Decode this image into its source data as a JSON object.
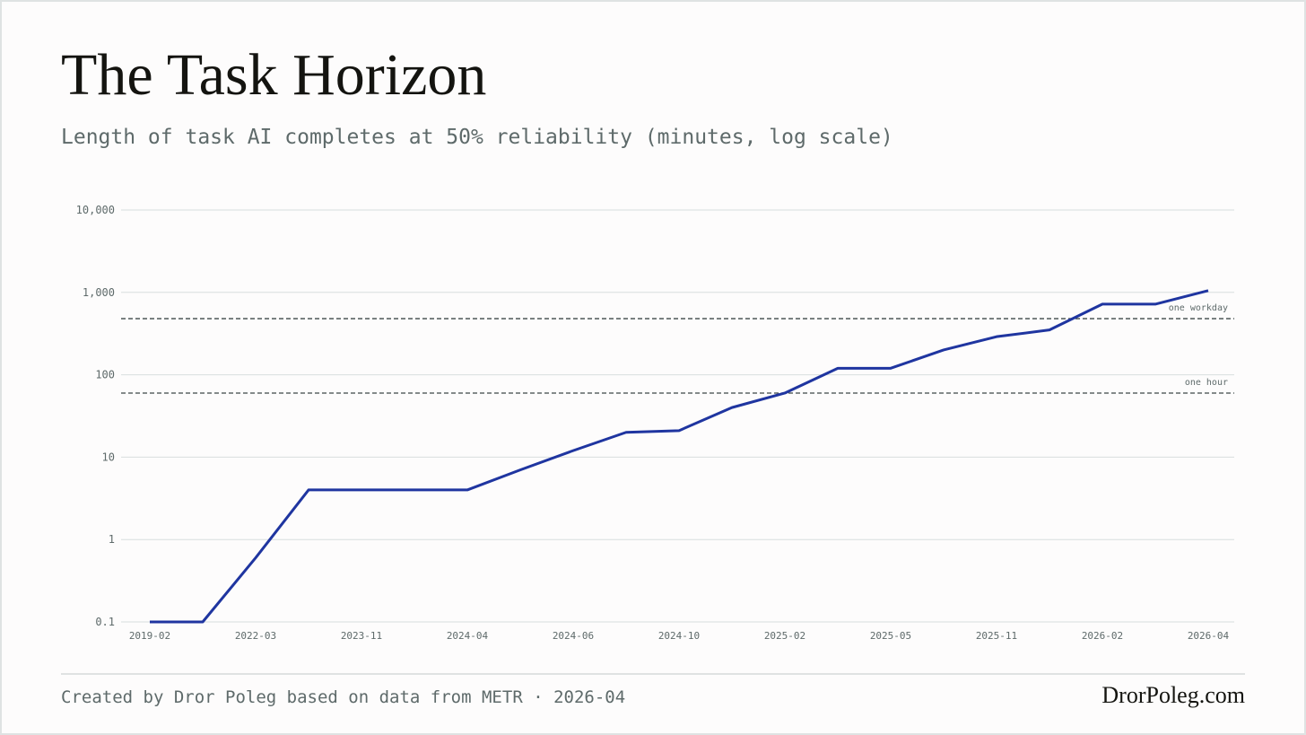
{
  "chart_data": {
    "type": "line",
    "title": "The Task Horizon",
    "subtitle": "Length of task AI completes at 50% reliability (minutes, log scale)",
    "categories": [
      "2019-02",
      null,
      "2022-03",
      null,
      "2023-11",
      null,
      "2024-04",
      null,
      "2024-06",
      null,
      "2024-10",
      null,
      "2025-02",
      null,
      "2025-05",
      null,
      "2025-11",
      null,
      "2026-02",
      null,
      "2026-04"
    ],
    "series": [
      {
        "color": "#1f35a0",
        "values": [
          0.1,
          0.1,
          0.6,
          4,
          4,
          4,
          4,
          7,
          12,
          20,
          21,
          40,
          60,
          120,
          120,
          200,
          290,
          350,
          720,
          720,
          1050
        ]
      }
    ],
    "ylog": true,
    "ylim": [
      0.1,
      10000
    ],
    "yticks": [
      0.1,
      1,
      10,
      100,
      {
        "value": 1000,
        "label": "1,000"
      },
      {
        "value": 10000,
        "label": "10,000"
      }
    ],
    "grid": true,
    "reference_lines": [
      {
        "value": 480,
        "label": "one workday"
      },
      {
        "value": 60,
        "label": "one hour"
      }
    ]
  },
  "footer": {
    "source": "Created by Dror Poleg based on data from METR · 2026-04",
    "brand": "DrorPoleg.com"
  }
}
